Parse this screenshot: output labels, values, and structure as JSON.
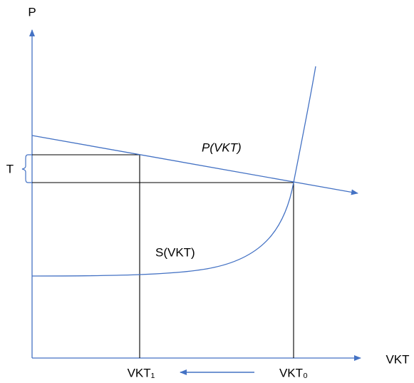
{
  "axes": {
    "y_label": "P",
    "x_label": "VKT"
  },
  "curves": {
    "demand_label": "P(VKT)",
    "supply_label": "S(VKT)"
  },
  "markers": {
    "toll_label": "T",
    "vkt_after": "VKT₁",
    "vkt_before": "VKT₀"
  }
}
